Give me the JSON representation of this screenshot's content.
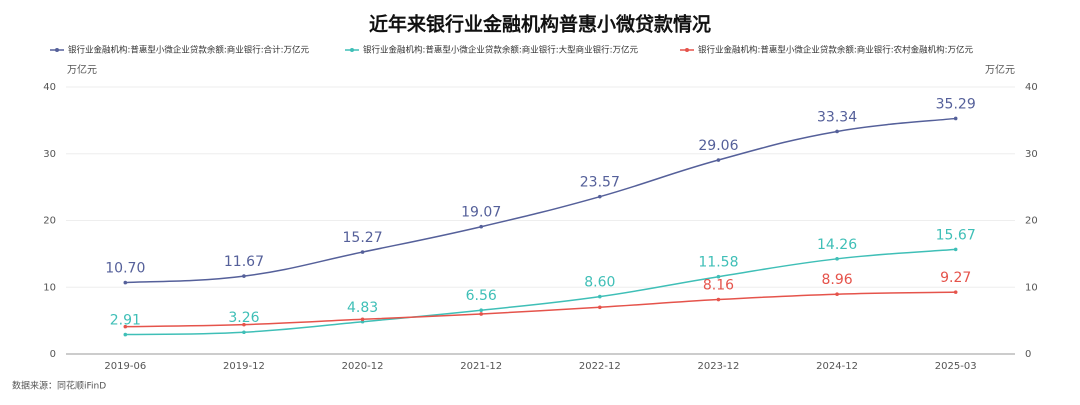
{
  "chart_data": {
    "type": "line",
    "title": "近年来银行业金融机构普惠小微贷款情况",
    "y_label": "万亿元",
    "y2_label": "万亿元",
    "source": "数据来源：同花顺iFinD",
    "categories": [
      "2019-06",
      "2019-12",
      "2020-12",
      "2021-12",
      "2022-12",
      "2023-12",
      "2024-12",
      "2025-03"
    ],
    "ylim": [
      0,
      40
    ],
    "yticks": [
      0,
      10,
      20,
      30,
      40
    ],
    "y2lim": [
      0,
      40
    ],
    "y2ticks": [
      0,
      10,
      20,
      30,
      40
    ],
    "grid": true,
    "series": [
      {
        "name": "银行业金融机构:普惠型小微企业贷款余额:商业银行:合计:万亿元",
        "color": "#55609a",
        "values": [
          10.7,
          11.67,
          15.27,
          19.07,
          23.57,
          29.06,
          33.34,
          35.29
        ],
        "value_labels": [
          "10.70",
          "11.67",
          "15.27",
          "19.07",
          "23.57",
          "29.06",
          "33.34",
          "35.29"
        ]
      },
      {
        "name": "银行业金融机构:普惠型小微企业贷款余额:商业银行:大型商业银行:万亿元",
        "color": "#3fbfb7",
        "values": [
          2.91,
          3.26,
          4.83,
          6.56,
          8.6,
          11.58,
          14.26,
          15.67
        ],
        "value_labels": [
          "2.91",
          "3.26",
          "4.83",
          "6.56",
          "8.60",
          "11.58",
          "14.26",
          "15.67"
        ]
      },
      {
        "name": "银行业金融机构:普惠型小微企业贷款余额:商业银行:农村金融机构:万亿元",
        "color": "#e5534b",
        "axis": "y2",
        "values": [
          4.1,
          4.4,
          5.2,
          6.0,
          7.0,
          8.16,
          8.96,
          9.27
        ],
        "value_labels": [
          null,
          null,
          null,
          null,
          null,
          "8.16",
          "8.96",
          "9.27"
        ]
      }
    ]
  }
}
